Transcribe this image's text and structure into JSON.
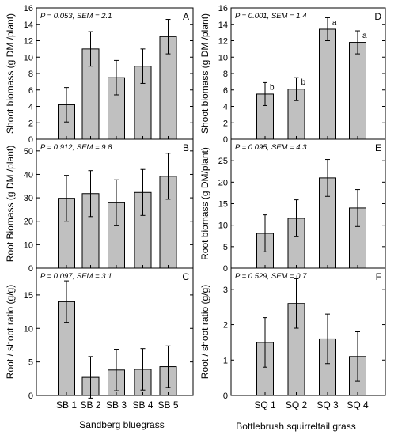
{
  "chart_data": [
    {
      "panel": "A",
      "group": "left",
      "row": 0,
      "type": "bar",
      "stat_label": "P = 0.053, SEM = 2.1",
      "ylabel": "Shoot biomass (g DM /plant)",
      "ylim": [
        0,
        16
      ],
      "yticks": [
        0,
        2,
        4,
        6,
        8,
        10,
        12,
        14,
        16
      ],
      "categories": [
        "SB 1",
        "SB 2",
        "SB 3",
        "SB 4",
        "SB 5"
      ],
      "values": [
        4.2,
        11.0,
        7.5,
        8.9,
        12.5
      ],
      "errors": [
        2.1,
        2.1,
        2.1,
        2.1,
        2.1
      ],
      "bar_labels": [
        "",
        "",
        "",
        "",
        ""
      ]
    },
    {
      "panel": "B",
      "group": "left",
      "row": 1,
      "type": "bar",
      "stat_label": "P = 0.912, SEM = 9.8",
      "ylabel": "Root Biomass (g DM /plant)",
      "ylim": [
        0,
        55
      ],
      "yticks": [
        0,
        10,
        20,
        30,
        40,
        50
      ],
      "categories": [
        "SB 1",
        "SB 2",
        "SB 3",
        "SB 4",
        "SB 5"
      ],
      "values": [
        29.8,
        31.8,
        27.9,
        32.3,
        39.2
      ],
      "errors": [
        9.8,
        9.8,
        9.8,
        9.8,
        9.8
      ],
      "bar_labels": [
        "",
        "",
        "",
        "",
        ""
      ]
    },
    {
      "panel": "C",
      "group": "left",
      "row": 2,
      "type": "bar",
      "stat_label": "P = 0.097, SEM = 3.1",
      "ylabel": "Root / shoot ratio (g/g)",
      "ylim": [
        0,
        19
      ],
      "yticks": [
        0,
        5,
        10,
        15
      ],
      "categories": [
        "SB 1",
        "SB 2",
        "SB 3",
        "SB 4",
        "SB 5"
      ],
      "values": [
        14.0,
        2.7,
        3.8,
        3.9,
        4.3
      ],
      "errors": [
        3.1,
        3.1,
        3.1,
        3.1,
        3.1
      ],
      "bar_labels": [
        "",
        "",
        "",
        "",
        ""
      ]
    },
    {
      "panel": "D",
      "group": "right",
      "row": 0,
      "type": "bar",
      "stat_label": "P = 0.001, SEM = 1.4",
      "ylabel": "Shoot biomass (g DM /plant)",
      "ylim": [
        0,
        16
      ],
      "yticks": [
        0,
        2,
        4,
        6,
        8,
        10,
        12,
        14,
        16
      ],
      "categories": [
        "SQ 1",
        "SQ 2",
        "SQ 3",
        "SQ 4"
      ],
      "values": [
        5.5,
        6.1,
        13.4,
        11.8
      ],
      "errors": [
        1.4,
        1.4,
        1.4,
        1.4
      ],
      "bar_labels": [
        "b",
        "b",
        "a",
        "a"
      ]
    },
    {
      "panel": "E",
      "group": "right",
      "row": 1,
      "type": "bar",
      "stat_label": "P = 0.095, SEM = 4.3",
      "ylabel": "Root biomass (g DM/plant)",
      "ylim": [
        0,
        30
      ],
      "yticks": [
        0,
        5,
        10,
        15,
        20,
        25
      ],
      "categories": [
        "SQ 1",
        "SQ 2",
        "SQ 3",
        "SQ 4"
      ],
      "values": [
        8.1,
        11.6,
        21.0,
        14.0
      ],
      "errors": [
        4.3,
        4.3,
        4.3,
        4.3
      ],
      "bar_labels": [
        "",
        "",
        "",
        ""
      ]
    },
    {
      "panel": "F",
      "group": "right",
      "row": 2,
      "type": "bar",
      "stat_label": "P = 0.529, SEM = 0.7",
      "ylabel": "Root / shoot ratio (g/g)",
      "ylim": [
        0,
        3.6
      ],
      "yticks": [
        0,
        1,
        2,
        3
      ],
      "categories": [
        "SQ 1",
        "SQ 2",
        "SQ 3",
        "SQ 4"
      ],
      "values": [
        1.5,
        2.6,
        1.6,
        1.1
      ],
      "errors": [
        0.7,
        0.7,
        0.7,
        0.7
      ],
      "bar_labels": [
        "",
        "",
        "",
        ""
      ]
    }
  ],
  "group_labels": {
    "left": "Sandberg bluegrass",
    "right": "Bottlebrush squirreltail grass"
  },
  "colors": {
    "bar_fill": "#c0c0c0",
    "bar_stroke": "#000000",
    "axis": "#000000"
  }
}
